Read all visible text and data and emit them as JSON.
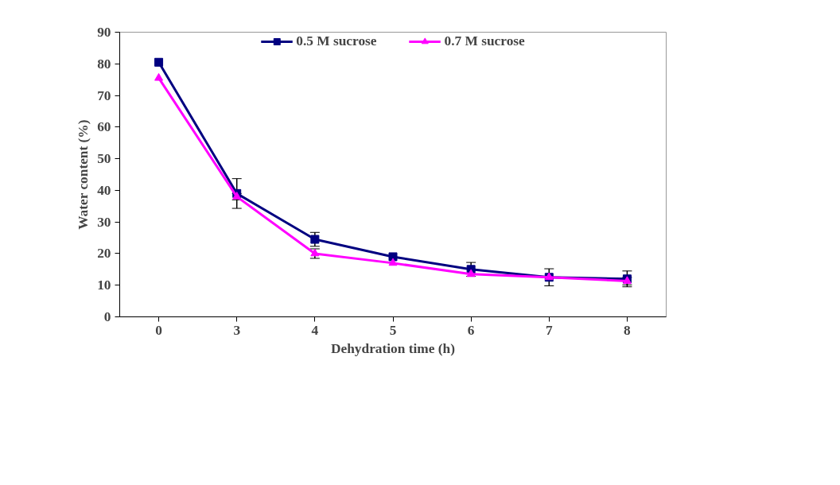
{
  "chart_data": {
    "type": "line",
    "xlabel": "Dehydration time (h)",
    "ylabel": "Water content (%)",
    "categories": [
      "0",
      "3",
      "4",
      "5",
      "6",
      "7",
      "8"
    ],
    "ylim": [
      0,
      90
    ],
    "yticks": [
      0,
      10,
      20,
      30,
      40,
      50,
      60,
      70,
      80,
      90
    ],
    "grid": false,
    "legend": "top",
    "line_style": "solid",
    "series": [
      {
        "name": "0.5 M sucrose",
        "color": "#000080",
        "marker": "square",
        "values": [
          80.5,
          39,
          24.5,
          19,
          15,
          12.5,
          12
        ],
        "errors": [
          null,
          4.7,
          2.2,
          null,
          2.2,
          2.7,
          2.5
        ]
      },
      {
        "name": "0.7 M sucrose",
        "color": "#ff00ff",
        "marker": "triangle",
        "values": [
          75.5,
          38,
          20,
          17,
          13.5,
          12.5,
          11.3
        ],
        "errors": [
          null,
          1,
          1.5,
          null,
          null,
          null,
          1.2
        ]
      }
    ]
  }
}
